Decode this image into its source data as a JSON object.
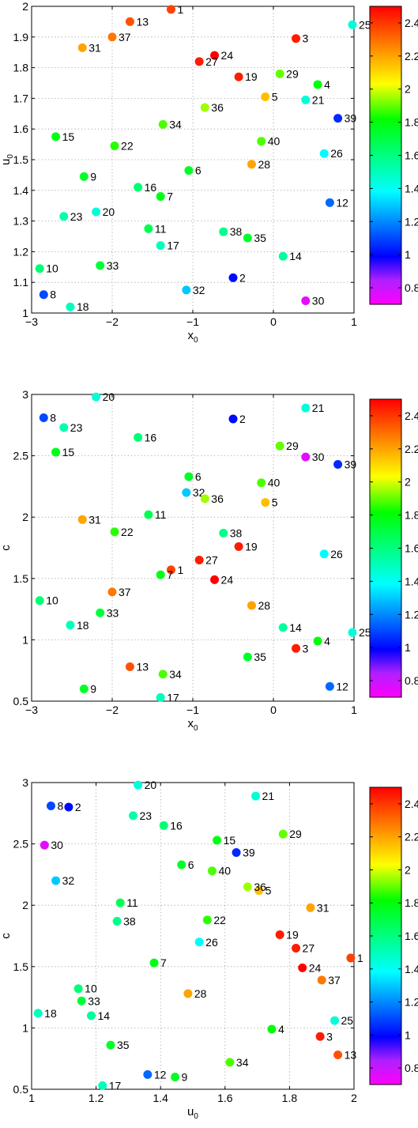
{
  "chart_data": [
    {
      "type": "scatter",
      "xlabel": "x",
      "xlabel_sub": "0",
      "ylabel": "u",
      "ylabel_sub": "0",
      "xlim": [
        -3,
        1
      ],
      "ylim": [
        1,
        2
      ],
      "xticks": [
        -3,
        -2,
        -1,
        0,
        1
      ],
      "yticks": [
        1,
        1.1,
        1.2,
        1.3,
        1.4,
        1.5,
        1.6,
        1.7,
        1.8,
        1.9,
        2
      ],
      "grid": true,
      "colorbar": {
        "range": [
          0.7,
          2.5
        ],
        "ticks": [
          0.8,
          1,
          1.2,
          1.4,
          1.6,
          1.8,
          2,
          2.2,
          2.4
        ],
        "colormap": "hsv-like (magenta-blue-cyan-green-yellow-red)"
      },
      "points": [
        {
          "label": "1",
          "x": -1.27,
          "y": 1.99,
          "c": 2.38
        },
        {
          "label": "2",
          "x": -0.5,
          "y": 1.115,
          "c": 1.0
        },
        {
          "label": "3",
          "x": 0.28,
          "y": 1.895,
          "c": 2.45
        },
        {
          "label": "4",
          "x": 0.55,
          "y": 1.745,
          "c": 1.8
        },
        {
          "label": "5",
          "x": -0.1,
          "y": 1.705,
          "c": 2.15
        },
        {
          "label": "6",
          "x": -1.05,
          "y": 1.465,
          "c": 1.75
        },
        {
          "label": "7",
          "x": -1.4,
          "y": 1.38,
          "c": 1.78
        },
        {
          "label": "8",
          "x": -2.85,
          "y": 1.06,
          "c": 1.1
        },
        {
          "label": "9",
          "x": -2.35,
          "y": 1.445,
          "c": 1.75
        },
        {
          "label": "10",
          "x": -2.9,
          "y": 1.145,
          "c": 1.62
        },
        {
          "label": "11",
          "x": -1.55,
          "y": 1.275,
          "c": 1.68
        },
        {
          "label": "12",
          "x": 0.7,
          "y": 1.36,
          "c": 1.15
        },
        {
          "label": "13",
          "x": -1.78,
          "y": 1.95,
          "c": 2.35
        },
        {
          "label": "14",
          "x": 0.12,
          "y": 1.185,
          "c": 1.55
        },
        {
          "label": "15",
          "x": -2.7,
          "y": 1.575,
          "c": 1.78
        },
        {
          "label": "16",
          "x": -1.68,
          "y": 1.41,
          "c": 1.62
        },
        {
          "label": "17",
          "x": -1.4,
          "y": 1.22,
          "c": 1.5
        },
        {
          "label": "18",
          "x": -2.52,
          "y": 1.02,
          "c": 1.5
        },
        {
          "label": "19",
          "x": -0.43,
          "y": 1.77,
          "c": 2.45
        },
        {
          "label": "20",
          "x": -2.2,
          "y": 1.33,
          "c": 1.45
        },
        {
          "label": "21",
          "x": 0.4,
          "y": 1.695,
          "c": 1.45
        },
        {
          "label": "22",
          "x": -1.97,
          "y": 1.545,
          "c": 1.85
        },
        {
          "label": "23",
          "x": -2.6,
          "y": 1.315,
          "c": 1.52
        },
        {
          "label": "24",
          "x": -0.73,
          "y": 1.84,
          "c": 2.5
        },
        {
          "label": "25",
          "x": 0.98,
          "y": 1.94,
          "c": 1.45
        },
        {
          "label": "26",
          "x": 0.63,
          "y": 1.52,
          "c": 1.38
        },
        {
          "label": "27",
          "x": -0.92,
          "y": 1.82,
          "c": 2.45
        },
        {
          "label": "28",
          "x": -0.27,
          "y": 1.485,
          "c": 2.2
        },
        {
          "label": "29",
          "x": 0.08,
          "y": 1.78,
          "c": 1.9
        },
        {
          "label": "30",
          "x": 0.4,
          "y": 1.04,
          "c": 0.75
        },
        {
          "label": "31",
          "x": -2.37,
          "y": 1.865,
          "c": 2.2
        },
        {
          "label": "32",
          "x": -1.08,
          "y": 1.075,
          "c": 1.3
        },
        {
          "label": "33",
          "x": -2.15,
          "y": 1.155,
          "c": 1.72
        },
        {
          "label": "34",
          "x": -1.37,
          "y": 1.615,
          "c": 1.88
        },
        {
          "label": "35",
          "x": -0.32,
          "y": 1.245,
          "c": 1.75
        },
        {
          "label": "36",
          "x": -0.85,
          "y": 1.67,
          "c": 1.95
        },
        {
          "label": "37",
          "x": -2.0,
          "y": 1.9,
          "c": 2.28
        },
        {
          "label": "38",
          "x": -0.62,
          "y": 1.265,
          "c": 1.58
        },
        {
          "label": "39",
          "x": 0.8,
          "y": 1.635,
          "c": 1.05
        },
        {
          "label": "40",
          "x": -0.15,
          "y": 1.56,
          "c": 1.88
        }
      ]
    },
    {
      "type": "scatter",
      "xlabel": "x",
      "xlabel_sub": "0",
      "ylabel": "c",
      "ylabel_sub": "",
      "xlim": [
        -3,
        1
      ],
      "ylim": [
        0.5,
        3
      ],
      "xticks": [
        -3,
        -2,
        -1,
        0,
        1
      ],
      "yticks": [
        0.5,
        1,
        1.5,
        2,
        2.5,
        3
      ],
      "grid": true,
      "colorbar": {
        "range": [
          0.7,
          2.5
        ],
        "ticks": [
          0.8,
          1,
          1.2,
          1.4,
          1.6,
          1.8,
          2,
          2.2,
          2.4
        ],
        "colormap": "hsv-like (magenta-blue-cyan-green-yellow-red)"
      },
      "points": [
        {
          "label": "1",
          "x": -1.27,
          "y": 1.57,
          "c": 2.38
        },
        {
          "label": "2",
          "x": -0.5,
          "y": 2.8,
          "c": 1.0
        },
        {
          "label": "3",
          "x": 0.28,
          "y": 0.93,
          "c": 2.45
        },
        {
          "label": "4",
          "x": 0.55,
          "y": 0.99,
          "c": 1.8
        },
        {
          "label": "5",
          "x": -0.1,
          "y": 2.12,
          "c": 2.15
        },
        {
          "label": "6",
          "x": -1.05,
          "y": 2.33,
          "c": 1.75
        },
        {
          "label": "7",
          "x": -1.4,
          "y": 1.53,
          "c": 1.78
        },
        {
          "label": "8",
          "x": -2.85,
          "y": 2.81,
          "c": 1.1
        },
        {
          "label": "9",
          "x": -2.35,
          "y": 0.6,
          "c": 1.75
        },
        {
          "label": "10",
          "x": -2.9,
          "y": 1.32,
          "c": 1.62
        },
        {
          "label": "11",
          "x": -1.55,
          "y": 2.02,
          "c": 1.68
        },
        {
          "label": "12",
          "x": 0.7,
          "y": 0.62,
          "c": 1.15
        },
        {
          "label": "13",
          "x": -1.78,
          "y": 0.78,
          "c": 2.35
        },
        {
          "label": "14",
          "x": 0.12,
          "y": 1.1,
          "c": 1.55
        },
        {
          "label": "15",
          "x": -2.7,
          "y": 2.53,
          "c": 1.78
        },
        {
          "label": "16",
          "x": -1.68,
          "y": 2.65,
          "c": 1.62
        },
        {
          "label": "17",
          "x": -1.4,
          "y": 0.53,
          "c": 1.5
        },
        {
          "label": "18",
          "x": -2.52,
          "y": 1.12,
          "c": 1.5
        },
        {
          "label": "19",
          "x": -0.43,
          "y": 1.76,
          "c": 2.45
        },
        {
          "label": "20",
          "x": -2.2,
          "y": 2.98,
          "c": 1.45
        },
        {
          "label": "21",
          "x": 0.4,
          "y": 2.89,
          "c": 1.45
        },
        {
          "label": "22",
          "x": -1.97,
          "y": 1.88,
          "c": 1.85
        },
        {
          "label": "23",
          "x": -2.6,
          "y": 2.73,
          "c": 1.52
        },
        {
          "label": "24",
          "x": -0.73,
          "y": 1.49,
          "c": 2.5
        },
        {
          "label": "25",
          "x": 0.98,
          "y": 1.06,
          "c": 1.45
        },
        {
          "label": "26",
          "x": 0.63,
          "y": 1.7,
          "c": 1.38
        },
        {
          "label": "27",
          "x": -0.92,
          "y": 1.65,
          "c": 2.45
        },
        {
          "label": "28",
          "x": -0.27,
          "y": 1.28,
          "c": 2.2
        },
        {
          "label": "29",
          "x": 0.08,
          "y": 2.58,
          "c": 1.9
        },
        {
          "label": "30",
          "x": 0.4,
          "y": 2.49,
          "c": 0.75
        },
        {
          "label": "31",
          "x": -2.37,
          "y": 1.98,
          "c": 2.2
        },
        {
          "label": "32",
          "x": -1.08,
          "y": 2.2,
          "c": 1.3
        },
        {
          "label": "33",
          "x": -2.15,
          "y": 1.22,
          "c": 1.72
        },
        {
          "label": "34",
          "x": -1.37,
          "y": 0.72,
          "c": 1.88
        },
        {
          "label": "35",
          "x": -0.32,
          "y": 0.86,
          "c": 1.75
        },
        {
          "label": "36",
          "x": -0.85,
          "y": 2.15,
          "c": 1.95
        },
        {
          "label": "37",
          "x": -2.0,
          "y": 1.39,
          "c": 2.28
        },
        {
          "label": "38",
          "x": -0.62,
          "y": 1.87,
          "c": 1.58
        },
        {
          "label": "39",
          "x": 0.8,
          "y": 2.43,
          "c": 1.05
        },
        {
          "label": "40",
          "x": -0.15,
          "y": 2.28,
          "c": 1.88
        }
      ]
    },
    {
      "type": "scatter",
      "xlabel": "u",
      "xlabel_sub": "0",
      "ylabel": "c",
      "ylabel_sub": "",
      "xlim": [
        1,
        2
      ],
      "ylim": [
        0.5,
        3
      ],
      "xticks": [
        1,
        1.2,
        1.4,
        1.6,
        1.8,
        2
      ],
      "yticks": [
        0.5,
        1,
        1.5,
        2,
        2.5,
        3
      ],
      "grid": true,
      "colorbar": {
        "range": [
          0.7,
          2.5
        ],
        "ticks": [
          0.8,
          1,
          1.2,
          1.4,
          1.6,
          1.8,
          2,
          2.2,
          2.4
        ],
        "colormap": "hsv-like (magenta-blue-cyan-green-yellow-red)"
      },
      "points": [
        {
          "label": "1",
          "x": 1.99,
          "y": 1.57,
          "c": 2.38
        },
        {
          "label": "2",
          "x": 1.115,
          "y": 2.8,
          "c": 1.0
        },
        {
          "label": "3",
          "x": 1.895,
          "y": 0.93,
          "c": 2.45
        },
        {
          "label": "4",
          "x": 1.745,
          "y": 0.99,
          "c": 1.8
        },
        {
          "label": "5",
          "x": 1.705,
          "y": 2.12,
          "c": 2.15
        },
        {
          "label": "6",
          "x": 1.465,
          "y": 2.33,
          "c": 1.75
        },
        {
          "label": "7",
          "x": 1.38,
          "y": 1.53,
          "c": 1.78
        },
        {
          "label": "8",
          "x": 1.06,
          "y": 2.81,
          "c": 1.1
        },
        {
          "label": "9",
          "x": 1.445,
          "y": 0.6,
          "c": 1.75
        },
        {
          "label": "10",
          "x": 1.145,
          "y": 1.32,
          "c": 1.62
        },
        {
          "label": "11",
          "x": 1.275,
          "y": 2.02,
          "c": 1.68
        },
        {
          "label": "12",
          "x": 1.36,
          "y": 0.62,
          "c": 1.15
        },
        {
          "label": "13",
          "x": 1.95,
          "y": 0.78,
          "c": 2.35
        },
        {
          "label": "14",
          "x": 1.185,
          "y": 1.1,
          "c": 1.55
        },
        {
          "label": "15",
          "x": 1.575,
          "y": 2.53,
          "c": 1.78
        },
        {
          "label": "16",
          "x": 1.41,
          "y": 2.65,
          "c": 1.62
        },
        {
          "label": "17",
          "x": 1.22,
          "y": 0.53,
          "c": 1.5
        },
        {
          "label": "18",
          "x": 1.02,
          "y": 1.12,
          "c": 1.5
        },
        {
          "label": "19",
          "x": 1.77,
          "y": 1.76,
          "c": 2.45
        },
        {
          "label": "20",
          "x": 1.33,
          "y": 2.98,
          "c": 1.45
        },
        {
          "label": "21",
          "x": 1.695,
          "y": 2.89,
          "c": 1.45
        },
        {
          "label": "22",
          "x": 1.545,
          "y": 1.88,
          "c": 1.85
        },
        {
          "label": "23",
          "x": 1.315,
          "y": 2.73,
          "c": 1.52
        },
        {
          "label": "24",
          "x": 1.84,
          "y": 1.49,
          "c": 2.5
        },
        {
          "label": "25",
          "x": 1.94,
          "y": 1.06,
          "c": 1.45
        },
        {
          "label": "26",
          "x": 1.52,
          "y": 1.7,
          "c": 1.38
        },
        {
          "label": "27",
          "x": 1.82,
          "y": 1.65,
          "c": 2.45
        },
        {
          "label": "28",
          "x": 1.485,
          "y": 1.28,
          "c": 2.2
        },
        {
          "label": "29",
          "x": 1.78,
          "y": 2.58,
          "c": 1.9
        },
        {
          "label": "30",
          "x": 1.04,
          "y": 2.49,
          "c": 0.75
        },
        {
          "label": "31",
          "x": 1.865,
          "y": 1.98,
          "c": 2.2
        },
        {
          "label": "32",
          "x": 1.075,
          "y": 2.2,
          "c": 1.3
        },
        {
          "label": "33",
          "x": 1.155,
          "y": 1.22,
          "c": 1.72
        },
        {
          "label": "34",
          "x": 1.615,
          "y": 0.72,
          "c": 1.88
        },
        {
          "label": "35",
          "x": 1.245,
          "y": 0.86,
          "c": 1.75
        },
        {
          "label": "36",
          "x": 1.67,
          "y": 2.15,
          "c": 1.95
        },
        {
          "label": "37",
          "x": 1.9,
          "y": 1.39,
          "c": 2.28
        },
        {
          "label": "38",
          "x": 1.265,
          "y": 1.87,
          "c": 1.58
        },
        {
          "label": "39",
          "x": 1.635,
          "y": 2.43,
          "c": 1.05
        },
        {
          "label": "40",
          "x": 1.56,
          "y": 2.28,
          "c": 1.88
        }
      ]
    }
  ]
}
